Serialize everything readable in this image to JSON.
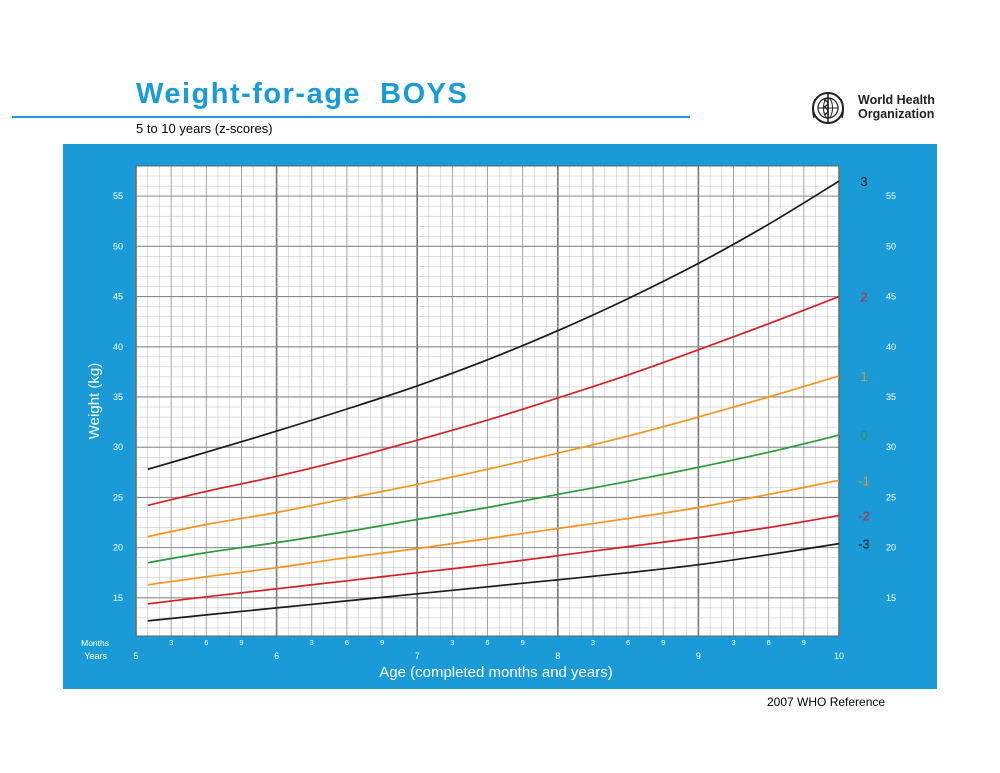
{
  "header": {
    "title": "Weight-for-age  BOYS",
    "subtitle": "5 to 10 years (z-scores)",
    "org_line1": "World Health",
    "org_line2": "Organization",
    "logo_icon": "who-emblem-icon"
  },
  "footer": {
    "reference": "2007 WHO Reference"
  },
  "colors": {
    "brand": "#1a9ad6",
    "grid_minor": "#bdbdbd",
    "grid_major": "#888888"
  },
  "chart_data": {
    "type": "line",
    "xlabel": "Age (completed months and years)",
    "ylabel": "Weight (kg)",
    "x_unit_label_months": "Months",
    "x_unit_label_years": "Years",
    "xlim": [
      5,
      10
    ],
    "ylim": [
      11.2,
      58
    ],
    "x_year_ticks": [
      "5",
      "6",
      "7",
      "8",
      "9",
      "10"
    ],
    "x_month_ticks": [
      "3",
      "6",
      "9"
    ],
    "y_ticks": [
      15,
      20,
      25,
      30,
      35,
      40,
      45,
      50,
      55
    ],
    "grid": true,
    "x": [
      5.083,
      5.5,
      6,
      6.5,
      7,
      7.5,
      8,
      8.5,
      9,
      9.5,
      10
    ],
    "series": [
      {
        "name": "3",
        "color": "#1a1a1a",
        "values": [
          27.8,
          29.5,
          31.6,
          33.8,
          36.1,
          38.7,
          41.6,
          44.8,
          48.3,
          52.2,
          56.5
        ]
      },
      {
        "name": "2",
        "color": "#d42026",
        "values": [
          24.2,
          25.6,
          27.1,
          28.8,
          30.7,
          32.7,
          34.9,
          37.2,
          39.7,
          42.3,
          45.0
        ]
      },
      {
        "name": "1",
        "color": "#f7941d",
        "values": [
          21.1,
          22.3,
          23.5,
          24.9,
          26.3,
          27.8,
          29.4,
          31.1,
          33.0,
          35.0,
          37.1
        ]
      },
      {
        "name": "0",
        "color": "#2a9a3a",
        "values": [
          18.5,
          19.5,
          20.5,
          21.6,
          22.8,
          24.0,
          25.3,
          26.6,
          28.0,
          29.5,
          31.2
        ]
      },
      {
        "name": "-1",
        "color": "#f7941d",
        "values": [
          16.3,
          17.1,
          18.0,
          19.0,
          19.9,
          20.9,
          21.9,
          22.9,
          24.0,
          25.3,
          26.7
        ]
      },
      {
        "name": "-2",
        "color": "#d42026",
        "values": [
          14.4,
          15.1,
          15.9,
          16.7,
          17.5,
          18.3,
          19.2,
          20.1,
          21.0,
          22.0,
          23.2
        ]
      },
      {
        "name": "-3",
        "color": "#1a1a1a",
        "values": [
          12.7,
          13.3,
          14.0,
          14.7,
          15.4,
          16.1,
          16.8,
          17.5,
          18.3,
          19.3,
          20.4
        ]
      }
    ]
  }
}
